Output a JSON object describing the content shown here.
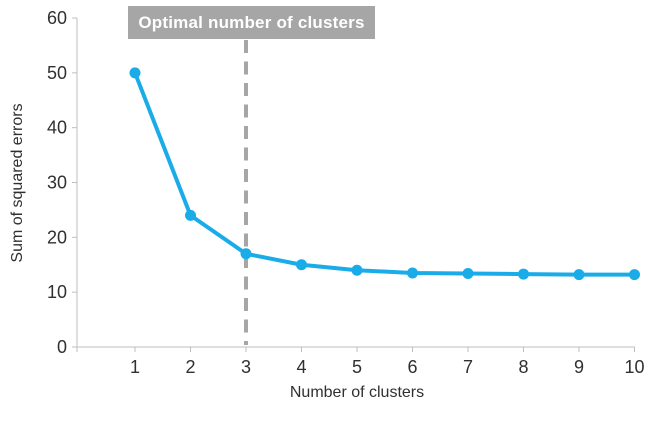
{
  "chart_data": {
    "type": "line",
    "title": "",
    "annotation": "Optimal number of clusters",
    "annotation_at_category": 3,
    "categories": [
      1,
      2,
      3,
      4,
      5,
      6,
      7,
      8,
      9,
      10
    ],
    "series": [
      {
        "name": "Sum of squared errors",
        "values": [
          50,
          24,
          17,
          15,
          14,
          13.5,
          13.4,
          13.3,
          13.2,
          13.2
        ]
      }
    ],
    "xlabel": "Number of clusters",
    "ylabel": "Sum of squared errors",
    "ylim": [
      0,
      60
    ],
    "yticks": [
      0,
      10,
      20,
      30,
      40,
      50,
      60
    ],
    "grid": false,
    "legend": false,
    "marker": "circle",
    "colors": {
      "line": "#1AACE8",
      "marker": "#1AACE8",
      "annotation_bg": "#A6A6A6",
      "annotation_text": "#FFFFFF",
      "dashed_line": "#A6A6A6",
      "axis": "#BFBFBF",
      "text": "#303030"
    }
  }
}
